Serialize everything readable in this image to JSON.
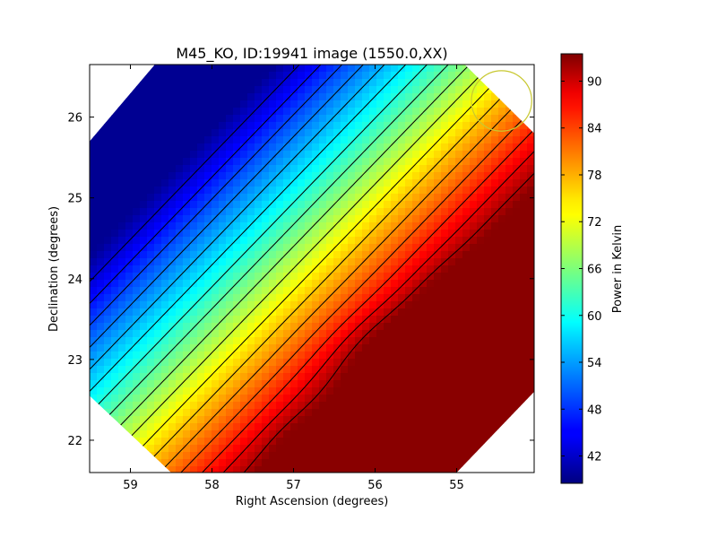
{
  "chart_data": {
    "type": "heatmap",
    "title": "M45_KO, ID:19941 image (1550.0,XX)",
    "xlabel": "Right Ascension (degrees)",
    "ylabel": "Declination (degrees)",
    "colorbar_label": "Power in Kelvin",
    "xlim": [
      59.5,
      54.05
    ],
    "ylim": [
      21.6,
      26.65
    ],
    "x_ticks": [
      59,
      58,
      57,
      56,
      55
    ],
    "y_ticks": [
      22,
      23,
      24,
      25,
      26
    ],
    "colorbar_range": [
      38.5,
      93.5
    ],
    "colorbar_ticks": [
      42,
      48,
      54,
      60,
      66,
      72,
      78,
      84,
      90
    ],
    "colormap": "jet",
    "contour_levels": [
      43,
      46,
      49,
      52,
      55,
      58,
      61,
      64,
      67,
      70,
      73,
      76,
      79,
      82,
      85,
      88,
      91
    ],
    "octagon_vertices": [
      [
        58.7,
        26.65
      ],
      [
        54.9,
        26.65
      ],
      [
        54.05,
        25.8
      ],
      [
        54.05,
        22.6
      ],
      [
        55.0,
        21.6
      ],
      [
        58.5,
        21.6
      ],
      [
        59.5,
        22.55
      ],
      [
        59.5,
        25.7
      ]
    ],
    "field_components": [
      {
        "kind": "base",
        "value": 50
      },
      {
        "kind": "gradient",
        "center": [
          57.9,
          25.0
        ],
        "direction": [
          -0.72,
          -0.69
        ],
        "slope": 16
      },
      {
        "kind": "blob",
        "center": [
          54.68,
          23.35
        ],
        "amplitude": 26,
        "sigma": [
          0.35,
          0.35
        ]
      },
      {
        "kind": "blob",
        "center": [
          54.85,
          22.95
        ],
        "amplitude": 14,
        "sigma": [
          0.7,
          0.35
        ]
      },
      {
        "kind": "blob",
        "center": [
          56.55,
          21.65
        ],
        "amplitude": 10,
        "sigma": [
          0.35,
          0.3
        ]
      },
      {
        "kind": "blob",
        "center": [
          54.05,
          24.1
        ],
        "amplitude": 6,
        "sigma": [
          0.25,
          0.3
        ]
      }
    ],
    "circle_marker": {
      "center": [
        54.45,
        26.2
      ],
      "radius_x_deg": 0.37,
      "color": "#c8c830"
    },
    "colors": {
      "contour": "#000000",
      "circle": "#c8c830"
    }
  }
}
